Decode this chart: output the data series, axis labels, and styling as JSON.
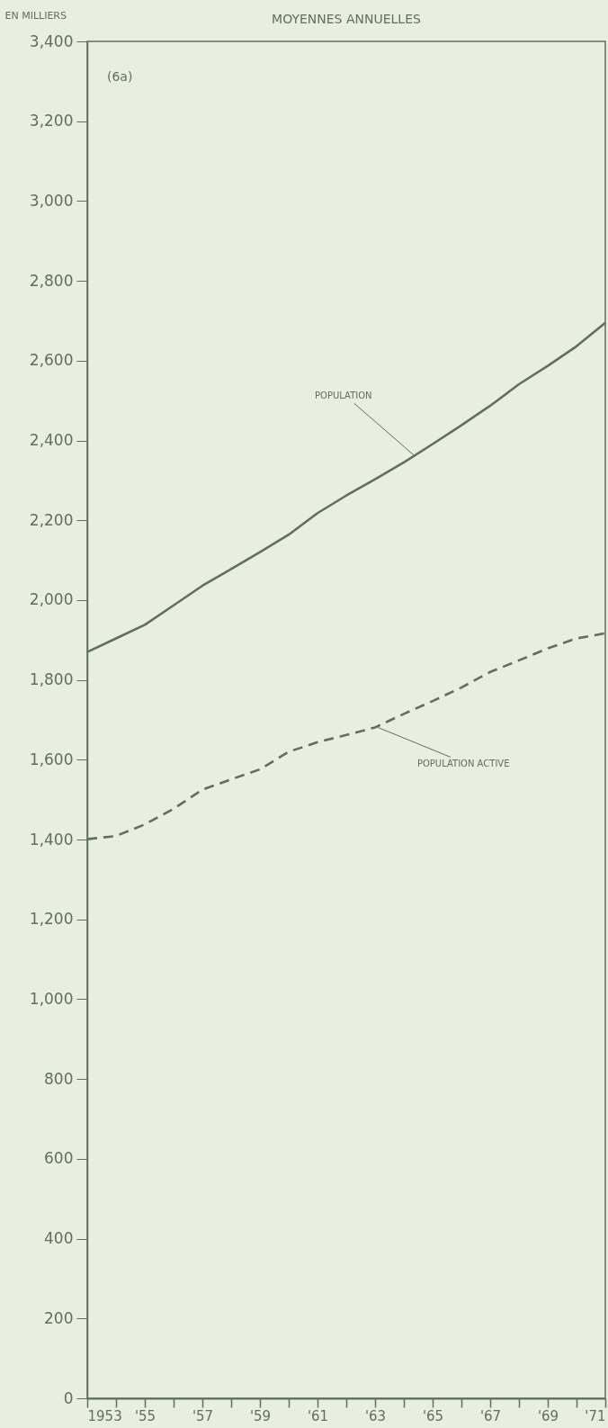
{
  "chart_data": {
    "type": "line",
    "title": "MOYENNES ANNUELLES",
    "ylabel": "EN MILLIERS",
    "x": [
      1953,
      1954,
      1955,
      1956,
      1957,
      1958,
      1959,
      1960,
      1961,
      1962,
      1963,
      1964,
      1965,
      1966,
      1967,
      1968,
      1969,
      1970,
      1971
    ],
    "series": [
      {
        "color": "#5f7158",
        "line_style": "solid",
        "values": [
          1870,
          1904,
          1938,
          1987,
          2036,
          2078,
          2120,
          2164,
          2218,
          2262,
          2303,
          2345,
          2391,
          2438,
          2487,
          2541,
          2587,
          2636,
          2695
        ]
      },
      {
        "color": "#5f7158",
        "line_style": "dashed",
        "values": [
          1401,
          1409,
          1438,
          1477,
          1525,
          1551,
          1576,
          1620,
          1644,
          1662,
          1681,
          1715,
          1747,
          1781,
          1820,
          1849,
          1879,
          1904,
          1917
        ]
      }
    ],
    "xlim": [
      1953,
      1971
    ],
    "xticks": [
      1953,
      {
        "value": 1954,
        "label": null
      },
      {
        "value": 1955,
        "label": "'55"
      },
      {
        "value": 1956,
        "label": null
      },
      {
        "value": 1957,
        "label": "'57"
      },
      {
        "value": 1958,
        "label": null
      },
      {
        "value": 1959,
        "label": "'59"
      },
      {
        "value": 1960,
        "label": null
      },
      {
        "value": 1961,
        "label": "'61"
      },
      {
        "value": 1962,
        "label": null
      },
      {
        "value": 1963,
        "label": "'63"
      },
      {
        "value": 1964,
        "label": null
      },
      {
        "value": 1965,
        "label": "'65"
      },
      {
        "value": 1966,
        "label": null
      },
      {
        "value": 1967,
        "label": "'67"
      },
      {
        "value": 1968,
        "label": null
      },
      {
        "value": 1969,
        "label": "'69"
      },
      {
        "value": 1970,
        "label": null
      },
      {
        "value": 1971,
        "label": "'71"
      }
    ],
    "ylim": [
      0,
      3400
    ],
    "yticks": [
      0,
      {
        "value": 200,
        "label": "200"
      },
      {
        "value": 400,
        "label": "400"
      },
      {
        "value": 600,
        "label": "600"
      },
      {
        "value": 800,
        "label": "800"
      },
      {
        "value": 1000,
        "label": "1,000"
      },
      {
        "value": 1200,
        "label": "1,200"
      },
      {
        "value": 1400,
        "label": "1,400"
      },
      {
        "value": 1600,
        "label": "1,600"
      },
      {
        "value": 1800,
        "label": "1,800"
      },
      {
        "value": 2000,
        "label": "2,000"
      },
      {
        "value": 2200,
        "label": "2,200"
      },
      {
        "value": 2400,
        "label": "2,400"
      },
      {
        "value": 2600,
        "label": "2,600"
      },
      {
        "value": 2800,
        "label": "2,800"
      },
      {
        "value": 3000,
        "label": "3,000"
      },
      {
        "value": 3200,
        "label": "3,200"
      },
      {
        "value": 3400,
        "label": "3,400"
      }
    ],
    "grid": false,
    "marker": "none",
    "annotations": [
      "(6a)",
      {
        "text": "POPULATION",
        "x": 1964.4,
        "y": 2360
      },
      {
        "text": "POPULATION ACTIVE",
        "x": 1963.1,
        "y": 1681
      }
    ]
  }
}
